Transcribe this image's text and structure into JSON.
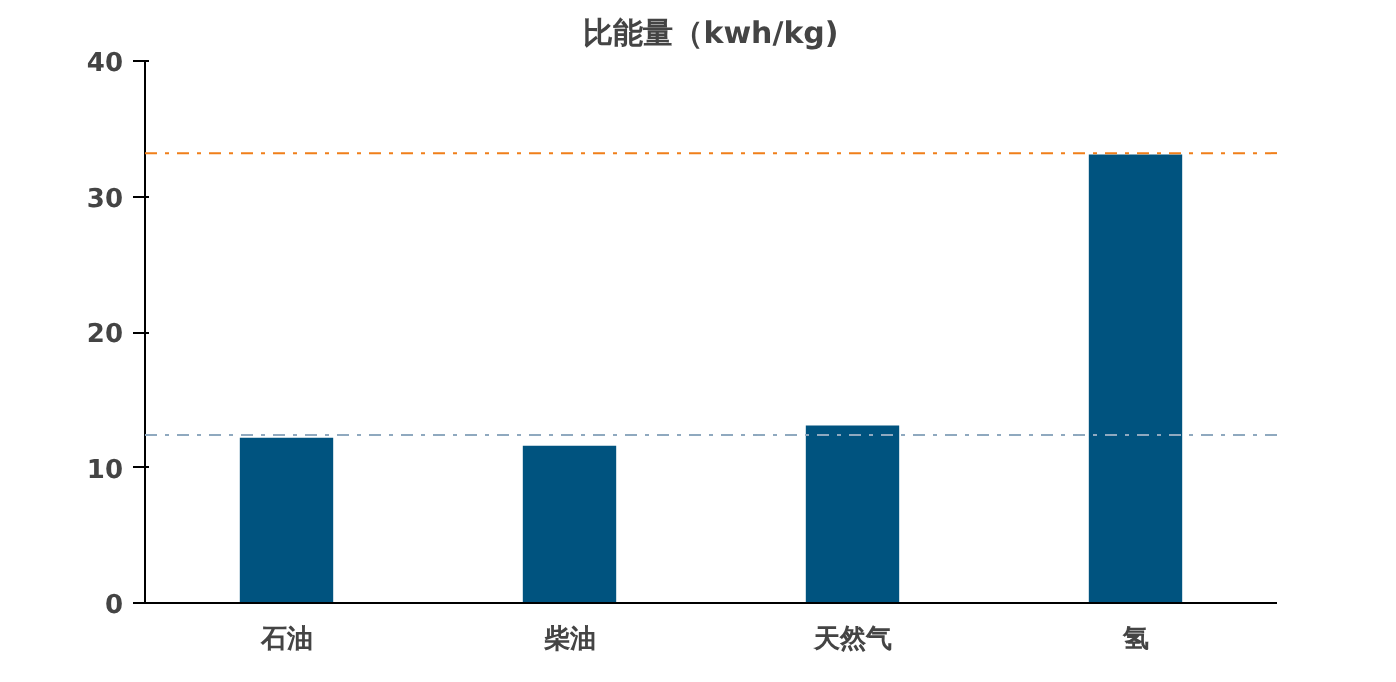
{
  "chart_data": {
    "type": "bar",
    "title": "比能量（kwh/kg)",
    "categories": [
      "石油",
      "柴油",
      "天然气",
      "氢"
    ],
    "values": [
      12.2,
      11.6,
      13.1,
      33.1
    ],
    "color": "#00537f",
    "ylim": [
      0,
      40
    ],
    "yticks": [
      0,
      10,
      20,
      30,
      40
    ],
    "ref_lines": [
      {
        "axis": "y",
        "value": 33.2,
        "color": "#f07f1a",
        "line_style": "dashdot"
      },
      {
        "axis": "y",
        "value": 12.4,
        "color": "#8fa9bf",
        "line_style": "dashdot"
      }
    ]
  }
}
